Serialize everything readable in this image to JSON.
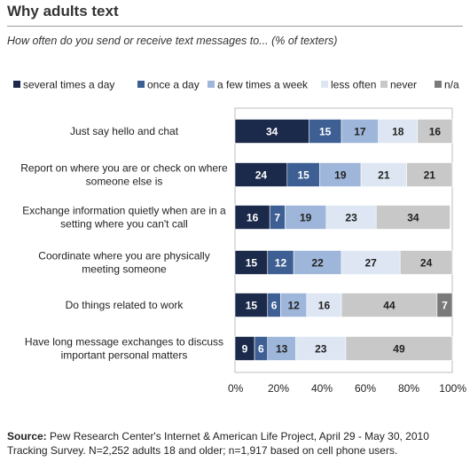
{
  "header": {
    "title": "Why adults text",
    "subtitle": "How often do you send or receive text messages to... (% of texters)"
  },
  "chart_data": {
    "type": "bar",
    "orientation": "horizontal",
    "stacked": true,
    "categories": [
      [
        "Just say hello and chat"
      ],
      [
        "Report on where you are or check on where",
        "someone else is"
      ],
      [
        "Exchange information quietly when are in a",
        "setting where you can't  call"
      ],
      [
        "Coordinate where you are physically",
        "meeting someone"
      ],
      [
        "Do things related to work"
      ],
      [
        "Have long message exchanges to discuss",
        "important personal matters"
      ]
    ],
    "series": [
      {
        "name": "several times a day",
        "color": "#1b2a4a",
        "text_color": "#ffffff",
        "values": [
          34,
          24,
          16,
          15,
          15,
          9
        ]
      },
      {
        "name": "once a day",
        "color": "#3e5f93",
        "text_color": "#ffffff",
        "values": [
          15,
          15,
          7,
          12,
          6,
          6
        ]
      },
      {
        "name": "a few times a week",
        "color": "#9db6d9",
        "text_color": "#222222",
        "values": [
          17,
          19,
          19,
          22,
          12,
          13
        ]
      },
      {
        "name": "less often",
        "color": "#dde6f2",
        "text_color": "#222222",
        "values": [
          18,
          21,
          23,
          27,
          16,
          23
        ]
      },
      {
        "name": "never",
        "color": "#c8c8c8",
        "text_color": "#222222",
        "values": [
          16,
          21,
          34,
          24,
          44,
          49
        ]
      },
      {
        "name": "n/a",
        "color": "#7a7a7a",
        "text_color": "#ffffff",
        "values": [
          0,
          0,
          0,
          0,
          7,
          0
        ]
      }
    ],
    "xlim": [
      0,
      100
    ],
    "xticks": [
      "0%",
      "20%",
      "40%",
      "60%",
      "80%",
      "100%"
    ],
    "grid": false,
    "legend_position": "top"
  },
  "source": {
    "label": "Source:",
    "text": "Pew Research Center's Internet & American Life Project, April 29 - May 30, 2010 Tracking Survey. N=2,252 adults 18 and older; n=1,917 based on cell phone users."
  }
}
